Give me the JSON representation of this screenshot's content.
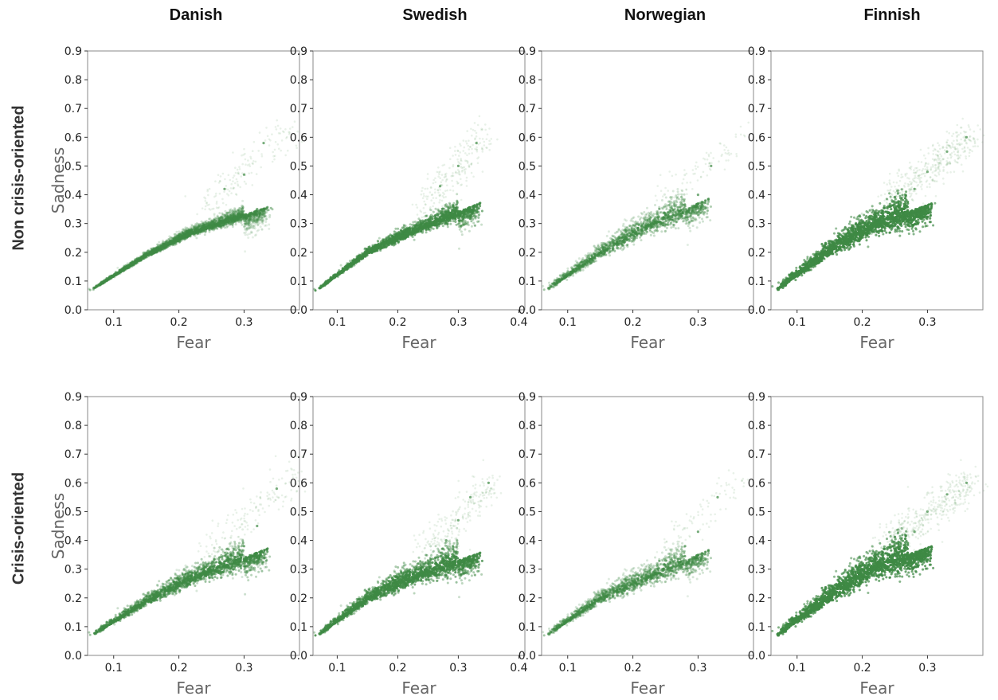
{
  "figure": {
    "column_titles": [
      "Danish",
      "Swedish",
      "Norwegian",
      "Finnish"
    ],
    "row_titles": [
      "Non crisis-oriented",
      "Crisis-oriented"
    ]
  },
  "colors": {
    "points": "#3f8a45",
    "axis": "#888888",
    "label": "#666666"
  },
  "chart_data": [
    {
      "type": "scatter",
      "row": "Non crisis-oriented",
      "column": "Danish",
      "xlabel": "Fear",
      "ylabel": "Sadness",
      "xlim": [
        0.06,
        0.385
      ],
      "ylim": [
        0,
        0.9
      ],
      "xticks": [
        0.1,
        0.2,
        0.3
      ],
      "yticks": [
        0,
        0.1,
        0.2,
        0.3,
        0.4,
        0.5,
        0.6,
        0.7,
        0.8,
        0.9
      ],
      "density": "medium",
      "fan": 0.35,
      "tail_max": [
        0.37,
        0.63
      ],
      "core": [
        [
          0.08,
          0.09
        ],
        [
          0.15,
          0.19
        ],
        [
          0.22,
          0.27
        ],
        [
          0.3,
          0.33
        ]
      ],
      "series": [
        {
          "name": "",
          "x": [
            0.08,
            0.1,
            0.12,
            0.15,
            0.18,
            0.2,
            0.22,
            0.25,
            0.28,
            0.3,
            0.32,
            0.27,
            0.3,
            0.33
          ],
          "y": [
            0.09,
            0.12,
            0.15,
            0.19,
            0.22,
            0.24,
            0.27,
            0.3,
            0.32,
            0.33,
            0.35,
            0.42,
            0.47,
            0.58
          ]
        }
      ]
    },
    {
      "type": "scatter",
      "row": "Non crisis-oriented",
      "column": "Swedish",
      "xlabel": "Fear",
      "ylabel": "Sadness",
      "xlim": [
        0.06,
        0.41
      ],
      "ylim": [
        0,
        0.9
      ],
      "xticks": [
        0.1,
        0.2,
        0.3,
        0.4
      ],
      "yticks": [
        0,
        0.1,
        0.2,
        0.3,
        0.4,
        0.5,
        0.6,
        0.7,
        0.8,
        0.9
      ],
      "density": "high",
      "fan": 0.45,
      "tail_max": [
        0.35,
        0.62
      ],
      "core": [
        [
          0.08,
          0.09
        ],
        [
          0.15,
          0.2
        ],
        [
          0.22,
          0.27
        ],
        [
          0.3,
          0.34
        ]
      ],
      "series": [
        {
          "name": "",
          "x": [
            0.08,
            0.1,
            0.12,
            0.15,
            0.18,
            0.2,
            0.22,
            0.25,
            0.28,
            0.3,
            0.32,
            0.27,
            0.3,
            0.33
          ],
          "y": [
            0.09,
            0.12,
            0.15,
            0.2,
            0.23,
            0.25,
            0.27,
            0.3,
            0.33,
            0.34,
            0.35,
            0.43,
            0.5,
            0.58
          ]
        }
      ]
    },
    {
      "type": "scatter",
      "row": "Non crisis-oriented",
      "column": "Norwegian",
      "xlabel": "Fear",
      "ylabel": "Sadness",
      "xlim": [
        0.06,
        0.385
      ],
      "ylim": [
        0,
        0.9
      ],
      "xticks": [
        0.1,
        0.2,
        0.3
      ],
      "yticks": [
        0,
        0.1,
        0.2,
        0.3,
        0.4,
        0.5,
        0.6,
        0.7,
        0.8,
        0.9
      ],
      "density": "low",
      "fan": 0.9,
      "tail_max": [
        0.37,
        0.62
      ],
      "core": [
        [
          0.08,
          0.09
        ],
        [
          0.15,
          0.2
        ],
        [
          0.22,
          0.29
        ],
        [
          0.28,
          0.35
        ]
      ],
      "series": [
        {
          "name": "",
          "x": [
            0.08,
            0.1,
            0.12,
            0.15,
            0.18,
            0.2,
            0.22,
            0.25,
            0.28,
            0.3,
            0.32
          ],
          "y": [
            0.09,
            0.12,
            0.15,
            0.2,
            0.25,
            0.27,
            0.29,
            0.33,
            0.36,
            0.4,
            0.5
          ]
        }
      ]
    },
    {
      "type": "scatter",
      "row": "Non crisis-oriented",
      "column": "Finnish",
      "xlabel": "Fear",
      "ylabel": "Sadness",
      "xlim": [
        0.06,
        0.385
      ],
      "ylim": [
        0,
        0.9
      ],
      "xticks": [
        0.1,
        0.2,
        0.3
      ],
      "yticks": [
        0,
        0.1,
        0.2,
        0.3,
        0.4,
        0.5,
        0.6,
        0.7,
        0.8,
        0.9
      ],
      "density": "very high",
      "fan": 1.0,
      "tail_max": [
        0.37,
        0.61
      ],
      "core": [
        [
          0.08,
          0.09
        ],
        [
          0.15,
          0.21
        ],
        [
          0.22,
          0.3
        ],
        [
          0.27,
          0.34
        ]
      ],
      "series": [
        {
          "name": "",
          "x": [
            0.08,
            0.1,
            0.12,
            0.15,
            0.18,
            0.2,
            0.22,
            0.25,
            0.28,
            0.3,
            0.33,
            0.36
          ],
          "y": [
            0.09,
            0.13,
            0.17,
            0.21,
            0.26,
            0.29,
            0.31,
            0.35,
            0.42,
            0.48,
            0.55,
            0.6
          ]
        }
      ]
    },
    {
      "type": "scatter",
      "row": "Crisis-oriented",
      "column": "Danish",
      "xlabel": "Fear",
      "ylabel": "Sadness",
      "xlim": [
        0.06,
        0.385
      ],
      "ylim": [
        0,
        0.9
      ],
      "xticks": [
        0.1,
        0.2,
        0.3
      ],
      "yticks": [
        0,
        0.1,
        0.2,
        0.3,
        0.4,
        0.5,
        0.6,
        0.7,
        0.8,
        0.9
      ],
      "density": "medium",
      "fan": 0.7,
      "tail_max": [
        0.38,
        0.63
      ],
      "core": [
        [
          0.08,
          0.09
        ],
        [
          0.15,
          0.19
        ],
        [
          0.22,
          0.27
        ],
        [
          0.3,
          0.34
        ]
      ],
      "series": [
        {
          "name": "",
          "x": [
            0.08,
            0.1,
            0.12,
            0.15,
            0.18,
            0.2,
            0.22,
            0.25,
            0.28,
            0.3,
            0.32,
            0.35
          ],
          "y": [
            0.09,
            0.12,
            0.15,
            0.19,
            0.23,
            0.25,
            0.27,
            0.31,
            0.35,
            0.38,
            0.45,
            0.58
          ]
        }
      ]
    },
    {
      "type": "scatter",
      "row": "Crisis-oriented",
      "column": "Swedish",
      "xlabel": "Fear",
      "ylabel": "Sadness",
      "xlim": [
        0.06,
        0.41
      ],
      "ylim": [
        0,
        0.9
      ],
      "xticks": [
        0.1,
        0.2,
        0.3,
        0.4
      ],
      "yticks": [
        0,
        0.1,
        0.2,
        0.3,
        0.4,
        0.5,
        0.6,
        0.7,
        0.8,
        0.9
      ],
      "density": "high",
      "fan": 0.8,
      "tail_max": [
        0.36,
        0.61
      ],
      "core": [
        [
          0.08,
          0.09
        ],
        [
          0.15,
          0.2
        ],
        [
          0.22,
          0.27
        ],
        [
          0.3,
          0.33
        ]
      ],
      "series": [
        {
          "name": "",
          "x": [
            0.08,
            0.1,
            0.12,
            0.15,
            0.18,
            0.2,
            0.22,
            0.25,
            0.28,
            0.3,
            0.32,
            0.35
          ],
          "y": [
            0.09,
            0.12,
            0.15,
            0.2,
            0.24,
            0.27,
            0.29,
            0.33,
            0.4,
            0.47,
            0.55,
            0.6
          ]
        }
      ]
    },
    {
      "type": "scatter",
      "row": "Crisis-oriented",
      "column": "Norwegian",
      "xlabel": "Fear",
      "ylabel": "Sadness",
      "xlim": [
        0.06,
        0.385
      ],
      "ylim": [
        0,
        0.9
      ],
      "xticks": [
        0.1,
        0.2,
        0.3
      ],
      "yticks": [
        0,
        0.1,
        0.2,
        0.3,
        0.4,
        0.5,
        0.6,
        0.7,
        0.8,
        0.9
      ],
      "density": "low",
      "fan": 0.85,
      "tail_max": [
        0.37,
        0.62
      ],
      "core": [
        [
          0.08,
          0.09
        ],
        [
          0.15,
          0.2
        ],
        [
          0.22,
          0.27
        ],
        [
          0.28,
          0.33
        ]
      ],
      "series": [
        {
          "name": "",
          "x": [
            0.08,
            0.1,
            0.12,
            0.15,
            0.18,
            0.2,
            0.22,
            0.25,
            0.28,
            0.3,
            0.33
          ],
          "y": [
            0.09,
            0.12,
            0.15,
            0.2,
            0.23,
            0.25,
            0.28,
            0.33,
            0.38,
            0.43,
            0.55
          ]
        }
      ]
    },
    {
      "type": "scatter",
      "row": "Crisis-oriented",
      "column": "Finnish",
      "xlabel": "Fear",
      "ylabel": "Sadness",
      "xlim": [
        0.06,
        0.385
      ],
      "ylim": [
        0,
        0.9
      ],
      "xticks": [
        0.1,
        0.2,
        0.3
      ],
      "yticks": [
        0,
        0.1,
        0.2,
        0.3,
        0.4,
        0.5,
        0.6,
        0.7,
        0.8,
        0.9
      ],
      "density": "very high",
      "fan": 1.15,
      "tail_max": [
        0.37,
        0.61
      ],
      "core": [
        [
          0.08,
          0.09
        ],
        [
          0.15,
          0.21
        ],
        [
          0.22,
          0.31
        ],
        [
          0.27,
          0.35
        ]
      ],
      "series": [
        {
          "name": "",
          "x": [
            0.08,
            0.1,
            0.12,
            0.15,
            0.18,
            0.2,
            0.22,
            0.25,
            0.28,
            0.3,
            0.33,
            0.36
          ],
          "y": [
            0.09,
            0.13,
            0.17,
            0.21,
            0.27,
            0.3,
            0.33,
            0.37,
            0.43,
            0.5,
            0.56,
            0.6
          ]
        }
      ]
    }
  ]
}
